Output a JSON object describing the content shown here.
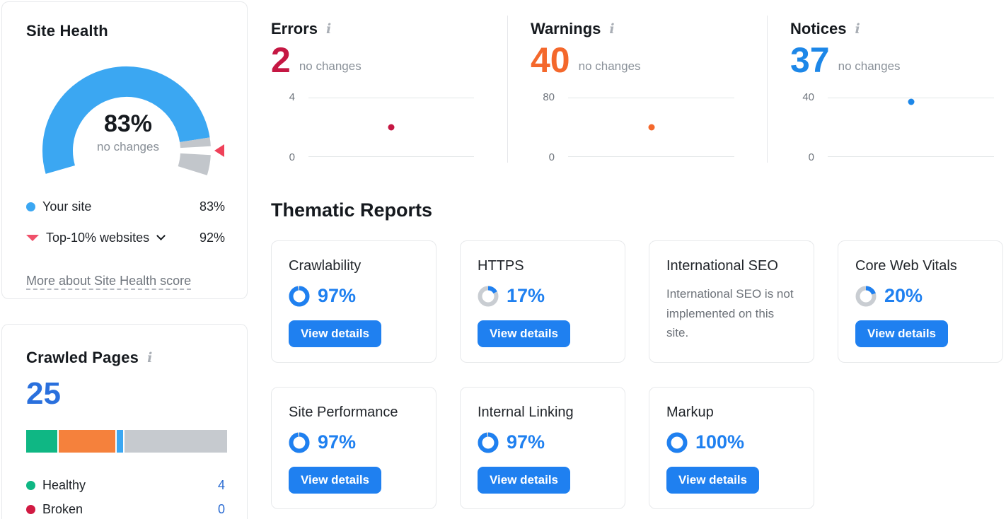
{
  "colors": {
    "accent_blue": "#1f80f0",
    "sky_blue": "#3ba7f2",
    "gauge_gray": "#c2c6cb",
    "marker_red": "#ef4159",
    "top10_triangle_red": "#f0506a",
    "errors_red": "#c51743",
    "warnings_orange": "#f4682c",
    "notices_blue": "#1d87e8",
    "crawled_total_blue": "#2a70dd",
    "legend_value_blue": "#2a6bd2",
    "healthy_green": "#0fb784",
    "broken_red": "#d11a42",
    "segment_orange": "#f5813c",
    "segment_gray": "#c6cacf"
  },
  "site_health": {
    "title": "Site Health",
    "value": 83,
    "value_label": "83%",
    "change_label": "no changes",
    "benchmark": 92,
    "legend": [
      {
        "label": "Your site",
        "value_label": "83%",
        "color": "#3ba7f2"
      },
      {
        "label": "Top-10% websites",
        "value_label": "92%",
        "color": "#f0506a"
      }
    ],
    "link_label": "More about Site Health score"
  },
  "crawled_pages": {
    "title": "Crawled Pages",
    "total_label": "25",
    "total": 25,
    "total_color": "#2a70dd",
    "segments": [
      {
        "label": "Healthy",
        "pct": 16,
        "color": "#0fb784"
      },
      {
        "pct": 28.5,
        "color": "#f5813c"
      },
      {
        "pct": 3.2,
        "color": "#3ba7f2"
      },
      {
        "pct": 52.3,
        "color": "#c6cacf"
      }
    ],
    "legend": [
      {
        "label": "Healthy",
        "value_label": "4",
        "color": "#0fb784"
      },
      {
        "label": "Broken",
        "value_label": "0",
        "color": "#d11a42"
      }
    ]
  },
  "metrics": [
    {
      "title": "Errors",
      "value_label": "2",
      "change_label": "no changes",
      "color": "#c51743",
      "tick_top": "4",
      "tick_bottom": "0",
      "y_max": 4,
      "point": 2
    },
    {
      "title": "Warnings",
      "value_label": "40",
      "change_label": "no changes",
      "color": "#f4682c",
      "tick_top": "80",
      "tick_bottom": "0",
      "y_max": 80,
      "point": 40
    },
    {
      "title": "Notices",
      "value_label": "37",
      "change_label": "no changes",
      "color": "#1d87e8",
      "tick_top": "40",
      "tick_bottom": "0",
      "y_max": 40,
      "point": 37
    }
  ],
  "thematic": {
    "heading": "Thematic Reports",
    "cards": [
      {
        "title": "Crawlability",
        "pct": 97,
        "pct_label": "97%",
        "button_label": "View details"
      },
      {
        "title": "HTTPS",
        "pct": 17,
        "pct_label": "17%",
        "button_label": "View details"
      },
      {
        "title": "International SEO",
        "message": "International SEO is not implemented on this site."
      },
      {
        "title": "Core Web Vitals",
        "pct": 20,
        "pct_label": "20%",
        "button_label": "View details"
      },
      {
        "title": "Site Performance",
        "pct": 97,
        "pct_label": "97%",
        "button_label": "View details"
      },
      {
        "title": "Internal Linking",
        "pct": 97,
        "pct_label": "97%",
        "button_label": "View details"
      },
      {
        "title": "Markup",
        "pct": 100,
        "pct_label": "100%",
        "button_label": "View details"
      }
    ]
  },
  "chart_data": [
    {
      "type": "gauge",
      "title": "Site Health",
      "value": 83,
      "unit": "%",
      "change": "no changes",
      "benchmark": {
        "label": "Top-10% websites",
        "value": 92
      },
      "colors": {
        "value_arc": "#3ba7f2",
        "remainder_arc": "#c2c6cb",
        "benchmark_marker": "#ef4159"
      }
    },
    {
      "type": "scatter",
      "title": "Errors",
      "values": [
        2
      ],
      "ylim": [
        0,
        4
      ],
      "yticks": [
        0,
        4
      ],
      "color": "#c51743",
      "annotation": "no changes",
      "grid": true
    },
    {
      "type": "scatter",
      "title": "Warnings",
      "values": [
        40
      ],
      "ylim": [
        0,
        80
      ],
      "yticks": [
        0,
        80
      ],
      "color": "#f4682c",
      "annotation": "no changes",
      "grid": true
    },
    {
      "type": "scatter",
      "title": "Notices",
      "values": [
        37
      ],
      "ylim": [
        0,
        40
      ],
      "yticks": [
        0,
        40
      ],
      "color": "#1d87e8",
      "annotation": "no changes",
      "grid": true
    },
    {
      "type": "bar",
      "title": "Crawled Pages",
      "stacked": true,
      "total": 25,
      "segments": [
        {
          "label": "Healthy",
          "pct": 16,
          "color": "#0fb784"
        },
        {
          "pct": 28.5,
          "color": "#f5813c"
        },
        {
          "pct": 3.2,
          "color": "#3ba7f2"
        },
        {
          "pct": 52.3,
          "color": "#c6cacf"
        }
      ],
      "legend": [
        {
          "label": "Healthy",
          "value": 4
        },
        {
          "label": "Broken",
          "value": 0
        }
      ]
    },
    {
      "type": "pie",
      "title": "Thematic Reports scores",
      "unit": "%",
      "items": [
        {
          "label": "Crawlability",
          "value": 97
        },
        {
          "label": "HTTPS",
          "value": 17
        },
        {
          "label": "Core Web Vitals",
          "value": 20
        },
        {
          "label": "Site Performance",
          "value": 97
        },
        {
          "label": "Internal Linking",
          "value": 97
        },
        {
          "label": "Markup",
          "value": 100
        }
      ]
    }
  ]
}
